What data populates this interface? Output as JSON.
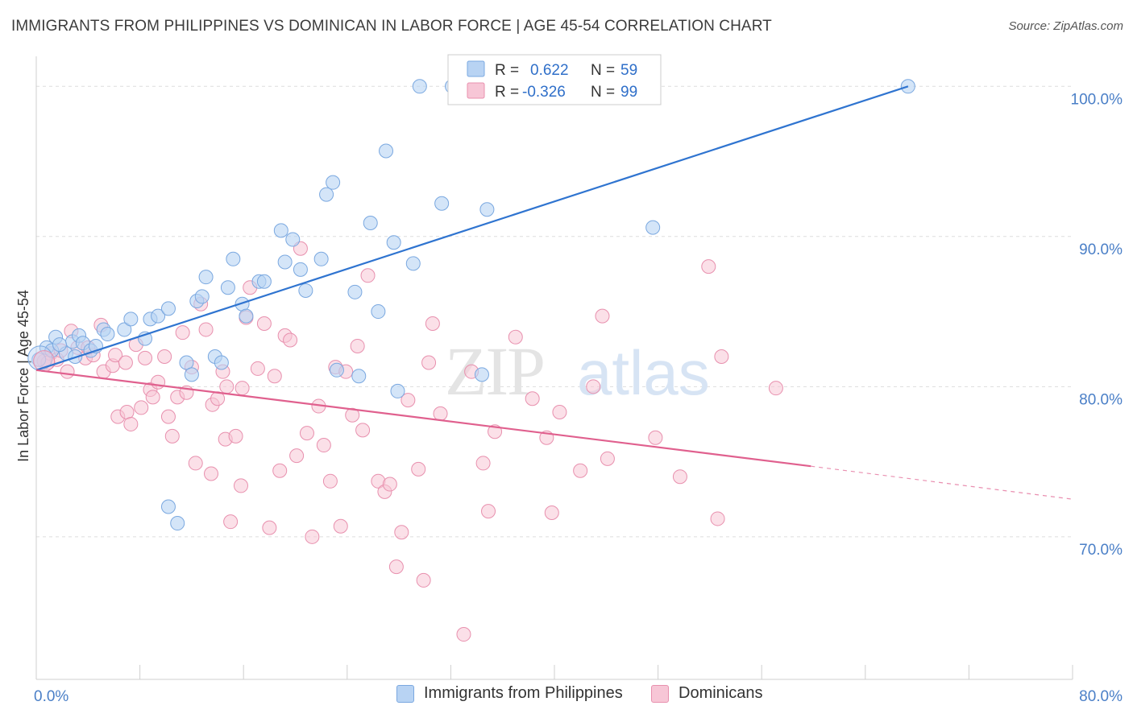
{
  "header": {
    "title": "IMMIGRANTS FROM PHILIPPINES VS DOMINICAN IN LABOR FORCE | AGE 45-54 CORRELATION CHART",
    "source": "Source: ZipAtlas.com"
  },
  "watermark": {
    "part1": "ZIP",
    "part2": "atlas"
  },
  "colors": {
    "blue_fill": "#b8d3f3",
    "blue_stroke": "#7aa8e0",
    "blue_line": "#2f74d0",
    "pink_fill": "#f7c6d6",
    "pink_stroke": "#e890ae",
    "pink_line": "#e0608e",
    "tick_label": "#4a7fc7",
    "grid": "#dddddd"
  },
  "legend": {
    "rows": [
      {
        "r_label": "R =",
        "r_value": "0.622",
        "n_label": "N =",
        "n_value": "59"
      },
      {
        "r_label": "R =",
        "r_value": "-0.326",
        "n_label": "N =",
        "n_value": "99"
      }
    ]
  },
  "bottom_legend": [
    {
      "label": "Immigrants from Philippines"
    },
    {
      "label": "Dominicans"
    }
  ],
  "chart_data": {
    "type": "scatter",
    "title": "IMMIGRANTS FROM PHILIPPINES VS DOMINICAN IN LABOR FORCE | AGE 45-54 CORRELATION CHART",
    "xlabel": "",
    "ylabel": "In Labor Force | Age 45-54",
    "xlim": [
      0,
      80
    ],
    "ylim": [
      60.5,
      102
    ],
    "x_tick_labels": [
      "0.0%",
      "80.0%"
    ],
    "y_ticks": [
      70,
      80,
      90,
      100
    ],
    "y_tick_labels": [
      "70.0%",
      "80.0%",
      "90.0%",
      "100.0%"
    ],
    "grid": true,
    "legend_position": "top-center",
    "series": [
      {
        "name": "Immigrants from Philippines",
        "r": 0.622,
        "n": 59,
        "trend": {
          "x": [
            0,
            67.3
          ],
          "y": [
            81.1,
            100.0
          ]
        },
        "points": [
          [
            0.2,
            81.8
          ],
          [
            0.8,
            82.6
          ],
          [
            1.2,
            82.4
          ],
          [
            1.5,
            83.3
          ],
          [
            2.3,
            82.2
          ],
          [
            2.8,
            83.0
          ],
          [
            3.3,
            83.4
          ],
          [
            3.6,
            82.9
          ],
          [
            4.2,
            82.4
          ],
          [
            4.6,
            82.7
          ],
          [
            5.2,
            83.8
          ],
          [
            5.5,
            83.5
          ],
          [
            6.8,
            83.8
          ],
          [
            7.3,
            84.5
          ],
          [
            8.4,
            83.2
          ],
          [
            8.8,
            84.5
          ],
          [
            9.4,
            84.7
          ],
          [
            10.2,
            85.2
          ],
          [
            11.6,
            81.6
          ],
          [
            12.0,
            80.8
          ],
          [
            12.4,
            85.7
          ],
          [
            12.8,
            86.0
          ],
          [
            13.1,
            87.3
          ],
          [
            13.8,
            82.0
          ],
          [
            14.3,
            81.6
          ],
          [
            14.8,
            86.6
          ],
          [
            15.2,
            88.5
          ],
          [
            15.9,
            85.5
          ],
          [
            16.2,
            84.7
          ],
          [
            17.2,
            87.0
          ],
          [
            17.6,
            87.0
          ],
          [
            18.9,
            90.4
          ],
          [
            19.2,
            88.3
          ],
          [
            19.8,
            89.8
          ],
          [
            20.4,
            87.8
          ],
          [
            20.8,
            86.4
          ],
          [
            22.0,
            88.5
          ],
          [
            22.4,
            92.8
          ],
          [
            22.9,
            93.6
          ],
          [
            23.2,
            81.1
          ],
          [
            24.6,
            86.3
          ],
          [
            24.9,
            80.7
          ],
          [
            25.8,
            90.9
          ],
          [
            26.4,
            85.0
          ],
          [
            27.0,
            95.7
          ],
          [
            27.6,
            89.6
          ],
          [
            27.9,
            79.7
          ],
          [
            29.1,
            88.2
          ],
          [
            29.6,
            100.0
          ],
          [
            31.3,
            92.2
          ],
          [
            32.1,
            100.0
          ],
          [
            34.4,
            80.8
          ],
          [
            34.8,
            91.8
          ],
          [
            47.6,
            90.6
          ],
          [
            67.3,
            100.0
          ],
          [
            10.2,
            72.0
          ],
          [
            10.9,
            70.9
          ],
          [
            1.8,
            82.8
          ],
          [
            3.0,
            82.0
          ]
        ]
      },
      {
        "name": "Dominicans",
        "r": -0.326,
        "n": 99,
        "trend": {
          "x": [
            0,
            59.8
          ],
          "y": [
            81.1,
            74.7
          ]
        },
        "trend_dashed": {
          "x": [
            59.8,
            80
          ],
          "y": [
            74.7,
            72.5
          ]
        },
        "points": [
          [
            0.6,
            81.7
          ],
          [
            1.1,
            82.2
          ],
          [
            1.6,
            81.8
          ],
          [
            2.4,
            81.0
          ],
          [
            2.7,
            83.7
          ],
          [
            3.2,
            82.6
          ],
          [
            3.8,
            81.9
          ],
          [
            4.4,
            82.1
          ],
          [
            5.0,
            84.1
          ],
          [
            5.2,
            81.0
          ],
          [
            5.9,
            81.4
          ],
          [
            6.1,
            82.1
          ],
          [
            6.3,
            78.0
          ],
          [
            6.9,
            81.6
          ],
          [
            7.0,
            78.3
          ],
          [
            7.3,
            77.5
          ],
          [
            7.7,
            82.8
          ],
          [
            8.1,
            78.6
          ],
          [
            8.4,
            81.9
          ],
          [
            8.8,
            79.8
          ],
          [
            9.0,
            79.3
          ],
          [
            9.4,
            80.3
          ],
          [
            9.9,
            82.0
          ],
          [
            10.2,
            78.0
          ],
          [
            10.5,
            76.7
          ],
          [
            10.9,
            79.3
          ],
          [
            11.3,
            83.6
          ],
          [
            11.6,
            79.6
          ],
          [
            12.0,
            81.3
          ],
          [
            12.3,
            74.9
          ],
          [
            12.7,
            85.5
          ],
          [
            13.1,
            83.8
          ],
          [
            13.6,
            78.8
          ],
          [
            14.0,
            79.2
          ],
          [
            14.4,
            81.0
          ],
          [
            14.6,
            76.5
          ],
          [
            15.0,
            71.0
          ],
          [
            15.4,
            76.7
          ],
          [
            15.9,
            79.9
          ],
          [
            16.2,
            84.6
          ],
          [
            16.5,
            86.6
          ],
          [
            17.1,
            81.2
          ],
          [
            17.6,
            84.2
          ],
          [
            18.0,
            70.6
          ],
          [
            18.4,
            80.7
          ],
          [
            18.8,
            74.4
          ],
          [
            19.2,
            83.4
          ],
          [
            19.6,
            83.1
          ],
          [
            20.1,
            75.4
          ],
          [
            20.4,
            89.2
          ],
          [
            20.9,
            76.9
          ],
          [
            21.3,
            70.0
          ],
          [
            21.8,
            78.7
          ],
          [
            22.2,
            76.1
          ],
          [
            22.7,
            73.7
          ],
          [
            23.1,
            81.3
          ],
          [
            23.5,
            70.7
          ],
          [
            23.9,
            81.0
          ],
          [
            24.4,
            78.1
          ],
          [
            24.8,
            82.7
          ],
          [
            25.2,
            77.1
          ],
          [
            25.6,
            87.4
          ],
          [
            26.4,
            73.7
          ],
          [
            26.9,
            73.0
          ],
          [
            27.3,
            73.5
          ],
          [
            27.8,
            68.0
          ],
          [
            28.2,
            70.3
          ],
          [
            28.7,
            79.1
          ],
          [
            29.5,
            74.5
          ],
          [
            29.9,
            67.1
          ],
          [
            30.3,
            81.6
          ],
          [
            30.6,
            84.2
          ],
          [
            31.2,
            78.2
          ],
          [
            33.0,
            63.5
          ],
          [
            33.6,
            81.0
          ],
          [
            34.5,
            74.9
          ],
          [
            34.9,
            71.7
          ],
          [
            35.4,
            77.0
          ],
          [
            37.0,
            83.3
          ],
          [
            38.3,
            79.2
          ],
          [
            39.4,
            76.6
          ],
          [
            39.8,
            71.6
          ],
          [
            40.4,
            78.3
          ],
          [
            42.0,
            74.4
          ],
          [
            43.0,
            80.0
          ],
          [
            43.7,
            84.7
          ],
          [
            44.1,
            75.2
          ],
          [
            47.8,
            76.6
          ],
          [
            49.7,
            74.0
          ],
          [
            51.9,
            88.0
          ],
          [
            52.6,
            71.2
          ],
          [
            52.9,
            82.0
          ],
          [
            57.1,
            79.9
          ],
          [
            1.9,
            82.4
          ],
          [
            4.0,
            82.6
          ],
          [
            15.8,
            73.4
          ],
          [
            0.9,
            81.6
          ],
          [
            14.7,
            80.0
          ],
          [
            13.5,
            74.2
          ]
        ]
      }
    ]
  }
}
